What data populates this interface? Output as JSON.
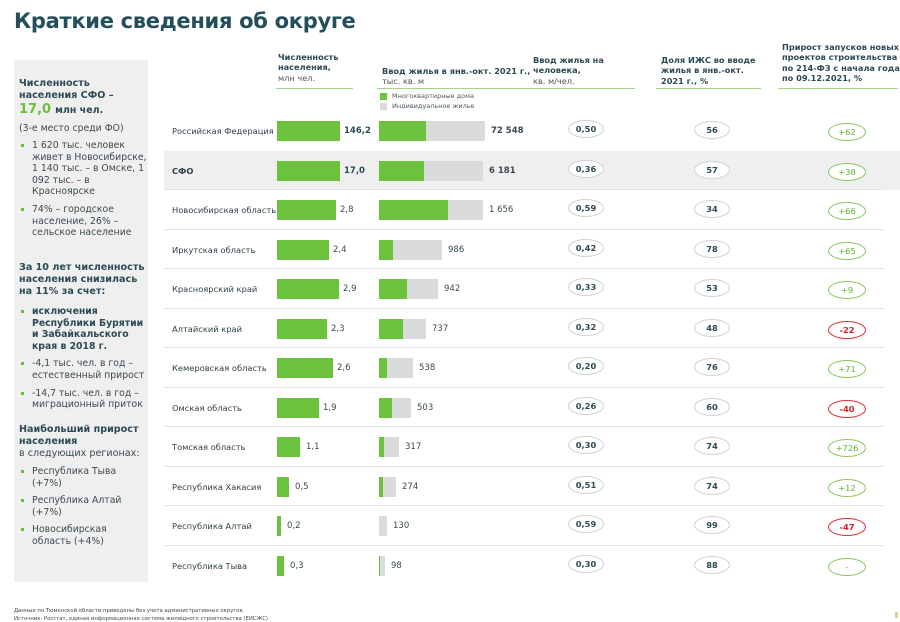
{
  "title": "Краткие сведения об округе",
  "sidebar": {
    "heading": "Численность населения СФО –",
    "population_value": "17,0",
    "population_unit": "млн чел.",
    "rank_note": "(3-е место среди ФО)",
    "facts": [
      "1 620 тыс. человек живет в Новосибирске, 1 140 тыс. – в Омске, 1 092 тыс. – в Красноярске",
      "74% – городское население, 26% – сельское население"
    ],
    "decline_heading": "За 10 лет численность населения снизилась на 11% за счет:",
    "decline_reasons": [
      "исключения Республики Бурятии и Забайкальского края в 2018 г.",
      "-4,1 тыс. чел. в год – естественный прирост",
      "-14,7 тыс. чел. в год – миграционный приток"
    ],
    "growth_heading": "Наибольший прирост населения",
    "growth_subheading": "в следующих регионах:",
    "growth_regions": [
      "Республика Тыва (+7%)",
      "Республика Алтай (+7%)",
      "Новосибирская область (+4%)"
    ]
  },
  "columns": {
    "population": {
      "title": "Численность населения,",
      "unit": "млн чел."
    },
    "housing": {
      "title": "Ввод жилья в янв.-окт. 2021 г.,",
      "unit": "тыс. кв. м"
    },
    "per_capita": {
      "title": "Ввод жилья на человека,",
      "unit": "кв. м/чел."
    },
    "izhs_share": {
      "title": "Доля ИЖС во вводе жилья в янв.-окт. 2021 г., %",
      "unit": ""
    },
    "growth": {
      "title": "Прирост запусков новых проектов строительства по 214-ФЗ с начала года по 09.12.2021, %",
      "unit": ""
    }
  },
  "legend": {
    "apartment": {
      "label": "Многоквартирные дома",
      "color": "#6cc23c"
    },
    "individual": {
      "label": "Индивидуальное жилье",
      "color": "#d9dbdd"
    }
  },
  "colors": {
    "accent_green": "#6cc23c",
    "negative_red": "#d0202a",
    "title": "#234e5c"
  },
  "rows": [
    {
      "name": "Российская Федерация",
      "highlight": false,
      "bold": true,
      "population": "146,2",
      "pop_bar_share": 1.0,
      "housing": "72 548",
      "housing_bar_share": 1.0,
      "per_capita": "0,50",
      "izhs": "56",
      "growth": "+62",
      "growth_sign": "pos"
    },
    {
      "name": "СФО",
      "highlight": true,
      "bold": true,
      "population": "17,0",
      "pop_bar_share": 1.0,
      "housing": "6 181",
      "housing_bar_share": 0.98,
      "per_capita": "0,36",
      "izhs": "57",
      "growth": "+38",
      "growth_sign": "pos"
    },
    {
      "name": "Новосибирская область",
      "highlight": false,
      "bold": false,
      "population": "2,8",
      "pop_bar_share": 0.93,
      "housing": "1 656",
      "housing_bar_share": 0.98,
      "per_capita": "0,59",
      "izhs": "34",
      "growth": "+66",
      "growth_sign": "pos"
    },
    {
      "name": "Иркутская область",
      "highlight": false,
      "bold": false,
      "population": "2,4",
      "pop_bar_share": 0.82,
      "housing": "986",
      "housing_bar_share": 0.59,
      "per_capita": "0,42",
      "izhs": "78",
      "growth": "+65",
      "growth_sign": "pos"
    },
    {
      "name": "Красноярский край",
      "highlight": false,
      "bold": false,
      "population": "2,9",
      "pop_bar_share": 0.98,
      "housing": "942",
      "housing_bar_share": 0.56,
      "per_capita": "0,33",
      "izhs": "53",
      "growth": "+9",
      "growth_sign": "pos"
    },
    {
      "name": "Алтайский край",
      "highlight": false,
      "bold": false,
      "population": "2,3",
      "pop_bar_share": 0.79,
      "housing": "737",
      "housing_bar_share": 0.44,
      "per_capita": "0,32",
      "izhs": "48",
      "growth": "-22",
      "growth_sign": "neg"
    },
    {
      "name": "Кемеровская область",
      "highlight": false,
      "bold": false,
      "population": "2,6",
      "pop_bar_share": 0.89,
      "housing": "538",
      "housing_bar_share": 0.32,
      "per_capita": "0,20",
      "izhs": "76",
      "growth": "+71",
      "growth_sign": "pos"
    },
    {
      "name": "Омская область",
      "highlight": false,
      "bold": false,
      "population": "1,9",
      "pop_bar_share": 0.67,
      "housing": "503",
      "housing_bar_share": 0.3,
      "per_capita": "0,26",
      "izhs": "60",
      "growth": "-40",
      "growth_sign": "neg"
    },
    {
      "name": "Томская область",
      "highlight": false,
      "bold": false,
      "population": "1,1",
      "pop_bar_share": 0.37,
      "housing": "317",
      "housing_bar_share": 0.19,
      "per_capita": "0,30",
      "izhs": "74",
      "growth": "+726",
      "growth_sign": "pos"
    },
    {
      "name": "Республика Хакасия",
      "highlight": false,
      "bold": false,
      "population": "0,5",
      "pop_bar_share": 0.19,
      "housing": "274",
      "housing_bar_share": 0.16,
      "per_capita": "0,51",
      "izhs": "74",
      "growth": "+12",
      "growth_sign": "pos"
    },
    {
      "name": "Республика Алтай",
      "highlight": false,
      "bold": false,
      "population": "0,2",
      "pop_bar_share": 0.07,
      "housing": "130",
      "housing_bar_share": 0.08,
      "per_capita": "0,59",
      "izhs": "99",
      "growth": "-47",
      "growth_sign": "neg"
    },
    {
      "name": "Республика Тыва",
      "highlight": false,
      "bold": false,
      "population": "0,3",
      "pop_bar_share": 0.11,
      "housing": "98",
      "housing_bar_share": 0.06,
      "per_capita": "0,30",
      "izhs": "88",
      "growth": "-",
      "growth_sign": "pos"
    }
  ],
  "footnote": {
    "line1": "Данные по Тюменской области приведены без учета административных округов.",
    "line2": "Источник: Росстат, единая информационная система жилищного строительства (ЕИСЖС)"
  }
}
